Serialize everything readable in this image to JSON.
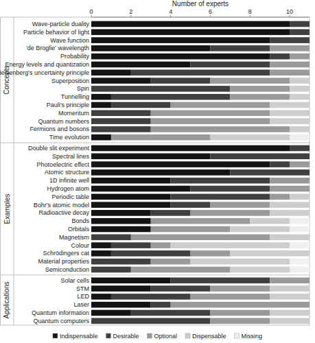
{
  "chart_data": {
    "type": "bar",
    "orientation": "horizontal",
    "stacked": true,
    "x_label": "Number of experts",
    "xlim": [
      0,
      11
    ],
    "xticks": [
      0,
      2,
      4,
      6,
      8,
      10
    ],
    "grid": false,
    "legend": "bottom",
    "groups": [
      {
        "label": "Concepts",
        "count": 15
      },
      {
        "label": "Examples",
        "count": 16
      },
      {
        "label": "Applications",
        "count": 6
      }
    ],
    "categories": [
      "Wave-particle duality",
      "Particle behavior of light",
      "Wave function",
      "'de Broglie' wavelength",
      "Probability",
      "Energy levels and quantization",
      "Heisenberg's uncertainty principle",
      "Superposition",
      "Spin",
      "Tunnelling",
      "Pauli's principle",
      "Momentum",
      "Quantum numbers",
      "Fermions and bosons",
      "Time evolution",
      "Double slit experiment",
      "Spectral lines",
      "Photoelectric effect",
      "Atomic structure",
      "1D infinite well",
      "Hydrogen atom",
      "Periodic table",
      "Bohr's atomic model",
      "Radioactive decay",
      "Bonds",
      "Orbitals",
      "Magnetism",
      "Colour",
      "Schrödingers cat",
      "Material properties",
      "Semiconduction",
      "Solar cells",
      "STM",
      "LED",
      "Laser",
      "Quantum information",
      "Quantum computers"
    ],
    "series": [
      {
        "name": "Indispensable",
        "color": "#141414",
        "values": [
          10,
          10,
          9,
          6,
          9,
          5,
          2,
          3,
          0,
          1,
          1,
          0,
          0,
          0,
          1,
          10,
          6,
          9,
          7,
          4,
          5,
          4,
          4,
          3,
          3,
          3,
          0,
          1,
          1,
          0,
          0,
          4,
          3,
          1,
          3,
          2,
          0
        ]
      },
      {
        "name": "Desirable",
        "color": "#404040",
        "values": [
          1,
          1,
          2,
          3,
          1,
          4,
          7,
          3,
          7,
          6,
          3,
          3,
          3,
          3,
          0,
          1,
          5,
          1,
          4,
          5,
          4,
          5,
          2,
          2,
          0,
          0,
          2,
          2,
          4,
          3,
          2,
          5,
          3,
          4,
          1,
          4,
          6
        ]
      },
      {
        "name": "Optional",
        "color": "#9a9a9a",
        "values": [
          0,
          0,
          0,
          2,
          1,
          2,
          2,
          4,
          3,
          3,
          5,
          6,
          6,
          7,
          5,
          0,
          0,
          1,
          0,
          2,
          2,
          1,
          3,
          4,
          5,
          4,
          7,
          1,
          2,
          2,
          5,
          2,
          3,
          4,
          7,
          3,
          3
        ]
      },
      {
        "name": "Dispensable",
        "color": "#cdcdcd",
        "values": [
          0,
          0,
          0,
          0,
          0,
          0,
          0,
          1,
          1,
          1,
          2,
          2,
          2,
          1,
          4,
          0,
          0,
          0,
          0,
          0,
          0,
          1,
          2,
          2,
          2,
          3,
          2,
          6,
          4,
          5,
          3,
          0,
          2,
          2,
          0,
          2,
          2
        ]
      },
      {
        "name": "Missing",
        "color": "#efefef",
        "values": [
          0,
          0,
          0,
          0,
          0,
          0,
          0,
          0,
          0,
          0,
          0,
          0,
          0,
          0,
          1,
          0,
          0,
          0,
          0,
          0,
          0,
          0,
          0,
          0,
          1,
          1,
          0,
          1,
          0,
          1,
          1,
          0,
          0,
          0,
          0,
          0,
          0
        ]
      }
    ]
  }
}
